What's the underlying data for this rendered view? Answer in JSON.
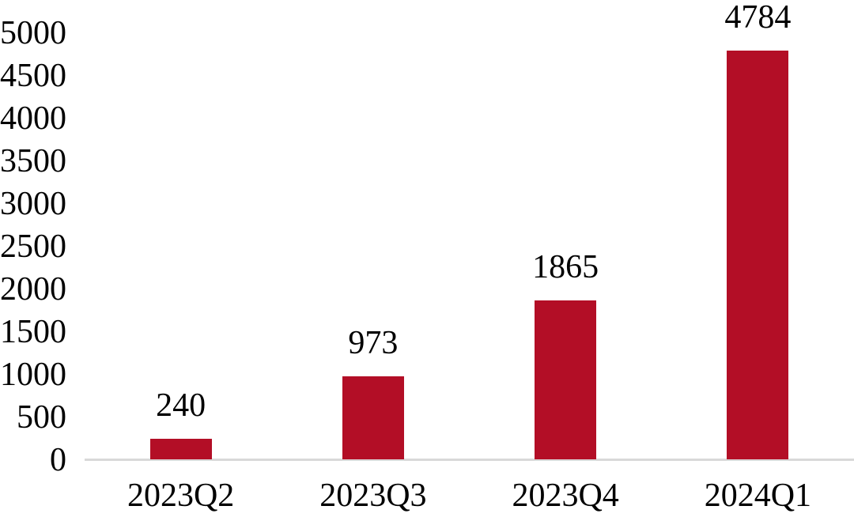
{
  "chart_data": {
    "type": "bar",
    "title": "",
    "xlabel": "",
    "ylabel": "",
    "categories": [
      "2023Q2",
      "2023Q3",
      "2023Q4",
      "2024Q1"
    ],
    "values": [
      240,
      973,
      1865,
      4784
    ],
    "data_labels": [
      "240",
      "973",
      "1865",
      "4784"
    ],
    "ylim": [
      0,
      5000
    ],
    "ytick_step": 500,
    "yticks": [
      0,
      500,
      1000,
      1500,
      2000,
      2500,
      3000,
      3500,
      4000,
      4500,
      5000
    ],
    "grid": false,
    "legend": "none",
    "colors": {
      "bar": "#B30E26",
      "axis_line": "#D9D9D9",
      "text": "#000000",
      "background": "#FFFFFF"
    }
  }
}
